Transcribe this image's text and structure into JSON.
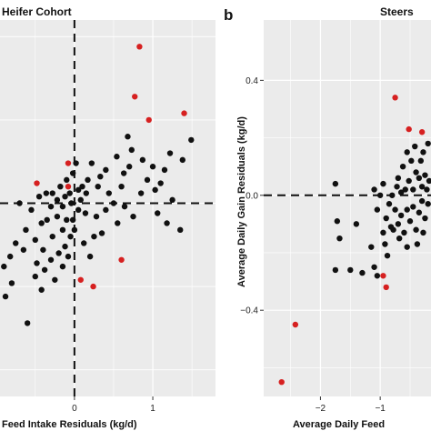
{
  "chart_data": [
    {
      "type": "scatter",
      "title": "Heifer Cohort",
      "xlabel": "Feed Intake Residuals (kg/d)",
      "ylabel": "",
      "xlim": [
        -0.95,
        1.8
      ],
      "ylim": [
        -0.58,
        0.55
      ],
      "xticks": [
        0,
        1
      ],
      "xtick_labels": [
        "0",
        "1"
      ],
      "grid": true,
      "reference_lines": {
        "x": 0,
        "y": 0
      },
      "colors": {
        "black": "#111111",
        "red": "#d62020",
        "panel": "#ebebeb",
        "grid": "#ffffff"
      },
      "points": [
        {
          "x": 0.83,
          "y": 0.47,
          "color": "red"
        },
        {
          "x": 0.77,
          "y": 0.32,
          "color": "red"
        },
        {
          "x": 1.4,
          "y": 0.27,
          "color": "red"
        },
        {
          "x": 0.95,
          "y": 0.25,
          "color": "red"
        },
        {
          "x": -0.08,
          "y": 0.12,
          "color": "red"
        },
        {
          "x": -0.48,
          "y": 0.06,
          "color": "red"
        },
        {
          "x": -0.08,
          "y": 0.05,
          "color": "red"
        },
        {
          "x": 0.6,
          "y": -0.17,
          "color": "red"
        },
        {
          "x": 0.24,
          "y": -0.25,
          "color": "red"
        },
        {
          "x": 0.08,
          "y": -0.23,
          "color": "red"
        },
        {
          "x": 0.02,
          "y": 0.12,
          "color": "black"
        },
        {
          "x": 1.49,
          "y": 0.19,
          "color": "black"
        },
        {
          "x": 1.38,
          "y": 0.13,
          "color": "black"
        },
        {
          "x": 1.22,
          "y": 0.15,
          "color": "black"
        },
        {
          "x": 0.73,
          "y": 0.16,
          "color": "black"
        },
        {
          "x": 0.87,
          "y": 0.13,
          "color": "black"
        },
        {
          "x": 0.54,
          "y": 0.14,
          "color": "black"
        },
        {
          "x": 1.0,
          "y": 0.11,
          "color": "black"
        },
        {
          "x": 1.1,
          "y": 0.06,
          "color": "black"
        },
        {
          "x": 0.63,
          "y": 0.09,
          "color": "black"
        },
        {
          "x": 0.7,
          "y": 0.11,
          "color": "black"
        },
        {
          "x": 0.33,
          "y": 0.08,
          "color": "black"
        },
        {
          "x": 0.22,
          "y": 0.12,
          "color": "black"
        },
        {
          "x": 0.1,
          "y": 0.05,
          "color": "black"
        },
        {
          "x": 0.17,
          "y": 0.07,
          "color": "black"
        },
        {
          "x": 0.44,
          "y": 0.03,
          "color": "black"
        },
        {
          "x": 0.5,
          "y": 0.0,
          "color": "black"
        },
        {
          "x": 0.85,
          "y": 0.03,
          "color": "black"
        },
        {
          "x": 1.03,
          "y": 0.04,
          "color": "black"
        },
        {
          "x": 1.25,
          "y": 0.01,
          "color": "black"
        },
        {
          "x": 1.06,
          "y": -0.03,
          "color": "black"
        },
        {
          "x": 1.18,
          "y": -0.06,
          "color": "black"
        },
        {
          "x": 1.35,
          "y": -0.08,
          "color": "black"
        },
        {
          "x": 0.75,
          "y": -0.04,
          "color": "black"
        },
        {
          "x": 0.64,
          "y": -0.01,
          "color": "black"
        },
        {
          "x": 0.55,
          "y": -0.06,
          "color": "black"
        },
        {
          "x": 0.4,
          "y": -0.02,
          "color": "black"
        },
        {
          "x": 0.28,
          "y": -0.04,
          "color": "black"
        },
        {
          "x": 0.35,
          "y": -0.09,
          "color": "black"
        },
        {
          "x": 0.14,
          "y": -0.03,
          "color": "black"
        },
        {
          "x": 0.05,
          "y": -0.02,
          "color": "black"
        },
        {
          "x": -0.04,
          "y": 0.0,
          "color": "black"
        },
        {
          "x": 0.08,
          "y": 0.01,
          "color": "black"
        },
        {
          "x": 0.15,
          "y": 0.03,
          "color": "black"
        },
        {
          "x": 0.05,
          "y": 0.04,
          "color": "black"
        },
        {
          "x": -0.06,
          "y": 0.03,
          "color": "black"
        },
        {
          "x": -0.12,
          "y": 0.02,
          "color": "black"
        },
        {
          "x": -0.18,
          "y": 0.05,
          "color": "black"
        },
        {
          "x": -0.22,
          "y": 0.01,
          "color": "black"
        },
        {
          "x": -0.28,
          "y": 0.03,
          "color": "black"
        },
        {
          "x": -0.36,
          "y": 0.03,
          "color": "black"
        },
        {
          "x": -0.45,
          "y": 0.02,
          "color": "black"
        },
        {
          "x": -0.3,
          "y": -0.01,
          "color": "black"
        },
        {
          "x": -0.15,
          "y": -0.01,
          "color": "black"
        },
        {
          "x": -0.22,
          "y": -0.04,
          "color": "black"
        },
        {
          "x": -0.1,
          "y": -0.05,
          "color": "black"
        },
        {
          "x": -0.02,
          "y": -0.05,
          "color": "black"
        },
        {
          "x": -0.15,
          "y": -0.08,
          "color": "black"
        },
        {
          "x": -0.05,
          "y": -0.1,
          "color": "black"
        },
        {
          "x": 0.0,
          "y": -0.08,
          "color": "black"
        },
        {
          "x": -0.28,
          "y": -0.1,
          "color": "black"
        },
        {
          "x": -0.35,
          "y": -0.05,
          "color": "black"
        },
        {
          "x": -0.42,
          "y": -0.06,
          "color": "black"
        },
        {
          "x": -0.55,
          "y": -0.02,
          "color": "black"
        },
        {
          "x": -0.62,
          "y": -0.08,
          "color": "black"
        },
        {
          "x": -0.75,
          "y": -0.12,
          "color": "black"
        },
        {
          "x": -0.65,
          "y": -0.14,
          "color": "black"
        },
        {
          "x": -0.82,
          "y": -0.16,
          "color": "black"
        },
        {
          "x": -0.9,
          "y": -0.19,
          "color": "black"
        },
        {
          "x": -0.8,
          "y": -0.24,
          "color": "black"
        },
        {
          "x": -0.88,
          "y": -0.28,
          "color": "black"
        },
        {
          "x": -0.5,
          "y": -0.11,
          "color": "black"
        },
        {
          "x": -0.4,
          "y": -0.14,
          "color": "black"
        },
        {
          "x": -0.48,
          "y": -0.18,
          "color": "black"
        },
        {
          "x": -0.38,
          "y": -0.2,
          "color": "black"
        },
        {
          "x": -0.3,
          "y": -0.17,
          "color": "black"
        },
        {
          "x": -0.2,
          "y": -0.15,
          "color": "black"
        },
        {
          "x": -0.12,
          "y": -0.13,
          "color": "black"
        },
        {
          "x": -0.25,
          "y": -0.23,
          "color": "black"
        },
        {
          "x": -0.42,
          "y": -0.26,
          "color": "black"
        },
        {
          "x": -0.5,
          "y": -0.22,
          "color": "black"
        },
        {
          "x": -0.15,
          "y": -0.19,
          "color": "black"
        },
        {
          "x": -0.08,
          "y": -0.16,
          "color": "black"
        },
        {
          "x": -0.6,
          "y": -0.36,
          "color": "black"
        },
        {
          "x": 0.25,
          "y": -0.1,
          "color": "black"
        },
        {
          "x": 0.12,
          "y": -0.12,
          "color": "black"
        },
        {
          "x": 0.2,
          "y": -0.16,
          "color": "black"
        },
        {
          "x": 0.3,
          "y": 0.05,
          "color": "black"
        },
        {
          "x": 0.4,
          "y": 0.1,
          "color": "black"
        },
        {
          "x": 0.6,
          "y": 0.05,
          "color": "black"
        },
        {
          "x": 0.93,
          "y": 0.07,
          "color": "black"
        },
        {
          "x": 1.15,
          "y": 0.1,
          "color": "black"
        },
        {
          "x": -0.7,
          "y": 0.0,
          "color": "black"
        },
        {
          "x": 0.68,
          "y": 0.2,
          "color": "black"
        },
        {
          "x": -0.02,
          "y": 0.09,
          "color": "black"
        },
        {
          "x": -0.1,
          "y": 0.07,
          "color": "black"
        }
      ]
    },
    {
      "type": "scatter",
      "title": "Steers",
      "panel_label": "b",
      "xlabel": "Average Daily Feed",
      "ylabel": "Average Daily Gain Residuals (kg/d)",
      "xlim": [
        -2.95,
        -0.15
      ],
      "ylim": [
        -0.7,
        0.61
      ],
      "xticks": [
        -2,
        -1
      ],
      "xtick_labels": [
        "−2",
        "−1"
      ],
      "yticks": [
        0.4,
        0.0,
        -0.4
      ],
      "ytick_labels": [
        "0.4",
        "0.0",
        "−0.4"
      ],
      "grid": true,
      "reference_lines": {
        "y": 0
      },
      "points": [
        {
          "x": -2.65,
          "y": -0.65,
          "color": "red"
        },
        {
          "x": -2.42,
          "y": -0.45,
          "color": "red"
        },
        {
          "x": -0.75,
          "y": 0.34,
          "color": "red"
        },
        {
          "x": -0.52,
          "y": 0.23,
          "color": "red"
        },
        {
          "x": -0.3,
          "y": 0.22,
          "color": "red"
        },
        {
          "x": -0.95,
          "y": -0.28,
          "color": "red"
        },
        {
          "x": -0.9,
          "y": -0.32,
          "color": "red"
        },
        {
          "x": -1.75,
          "y": 0.04,
          "color": "black"
        },
        {
          "x": -1.72,
          "y": -0.09,
          "color": "black"
        },
        {
          "x": -1.68,
          "y": -0.15,
          "color": "black"
        },
        {
          "x": -1.75,
          "y": -0.26,
          "color": "black"
        },
        {
          "x": -1.5,
          "y": -0.26,
          "color": "black"
        },
        {
          "x": -1.3,
          "y": -0.27,
          "color": "black"
        },
        {
          "x": -1.1,
          "y": -0.25,
          "color": "black"
        },
        {
          "x": -1.05,
          "y": -0.28,
          "color": "black"
        },
        {
          "x": -1.15,
          "y": -0.18,
          "color": "black"
        },
        {
          "x": -0.92,
          "y": -0.17,
          "color": "black"
        },
        {
          "x": -0.88,
          "y": -0.21,
          "color": "black"
        },
        {
          "x": -0.78,
          "y": -0.12,
          "color": "black"
        },
        {
          "x": -0.7,
          "y": -0.1,
          "color": "black"
        },
        {
          "x": -0.65,
          "y": -0.07,
          "color": "black"
        },
        {
          "x": -0.6,
          "y": -0.13,
          "color": "black"
        },
        {
          "x": -0.55,
          "y": -0.05,
          "color": "black"
        },
        {
          "x": -0.5,
          "y": -0.09,
          "color": "black"
        },
        {
          "x": -0.45,
          "y": -0.04,
          "color": "black"
        },
        {
          "x": -0.4,
          "y": -0.12,
          "color": "black"
        },
        {
          "x": -0.35,
          "y": -0.06,
          "color": "black"
        },
        {
          "x": -0.3,
          "y": -0.02,
          "color": "black"
        },
        {
          "x": -0.25,
          "y": -0.08,
          "color": "black"
        },
        {
          "x": -0.2,
          "y": -0.03,
          "color": "black"
        },
        {
          "x": -0.85,
          "y": -0.03,
          "color": "black"
        },
        {
          "x": -0.8,
          "y": 0.0,
          "color": "black"
        },
        {
          "x": -0.72,
          "y": 0.03,
          "color": "black"
        },
        {
          "x": -0.65,
          "y": 0.01,
          "color": "black"
        },
        {
          "x": -0.58,
          "y": 0.02,
          "color": "black"
        },
        {
          "x": -0.52,
          "y": 0.05,
          "color": "black"
        },
        {
          "x": -0.45,
          "y": 0.02,
          "color": "black"
        },
        {
          "x": -0.4,
          "y": 0.08,
          "color": "black"
        },
        {
          "x": -0.35,
          "y": 0.06,
          "color": "black"
        },
        {
          "x": -0.3,
          "y": 0.03,
          "color": "black"
        },
        {
          "x": -0.25,
          "y": 0.07,
          "color": "black"
        },
        {
          "x": -0.22,
          "y": 0.02,
          "color": "black"
        },
        {
          "x": -0.18,
          "y": 0.05,
          "color": "black"
        },
        {
          "x": -0.95,
          "y": 0.04,
          "color": "black"
        },
        {
          "x": -1.0,
          "y": 0.0,
          "color": "black"
        },
        {
          "x": -1.05,
          "y": -0.05,
          "color": "black"
        },
        {
          "x": -0.9,
          "y": -0.08,
          "color": "black"
        },
        {
          "x": -0.75,
          "y": -0.05,
          "color": "black"
        },
        {
          "x": -0.68,
          "y": -0.15,
          "color": "black"
        },
        {
          "x": -0.62,
          "y": 0.1,
          "color": "black"
        },
        {
          "x": -0.55,
          "y": 0.15,
          "color": "black"
        },
        {
          "x": -0.48,
          "y": 0.12,
          "color": "black"
        },
        {
          "x": -0.42,
          "y": 0.17,
          "color": "black"
        },
        {
          "x": -0.32,
          "y": 0.12,
          "color": "black"
        },
        {
          "x": -0.28,
          "y": 0.15,
          "color": "black"
        },
        {
          "x": -0.2,
          "y": 0.18,
          "color": "black"
        },
        {
          "x": -0.82,
          "y": -0.11,
          "color": "black"
        },
        {
          "x": -0.95,
          "y": -0.13,
          "color": "black"
        },
        {
          "x": -0.55,
          "y": -0.18,
          "color": "black"
        },
        {
          "x": -0.38,
          "y": -0.17,
          "color": "black"
        },
        {
          "x": -0.28,
          "y": -0.13,
          "color": "black"
        },
        {
          "x": -0.7,
          "y": 0.06,
          "color": "black"
        },
        {
          "x": -1.1,
          "y": 0.02,
          "color": "black"
        },
        {
          "x": -1.4,
          "y": -0.1,
          "color": "black"
        }
      ]
    }
  ]
}
